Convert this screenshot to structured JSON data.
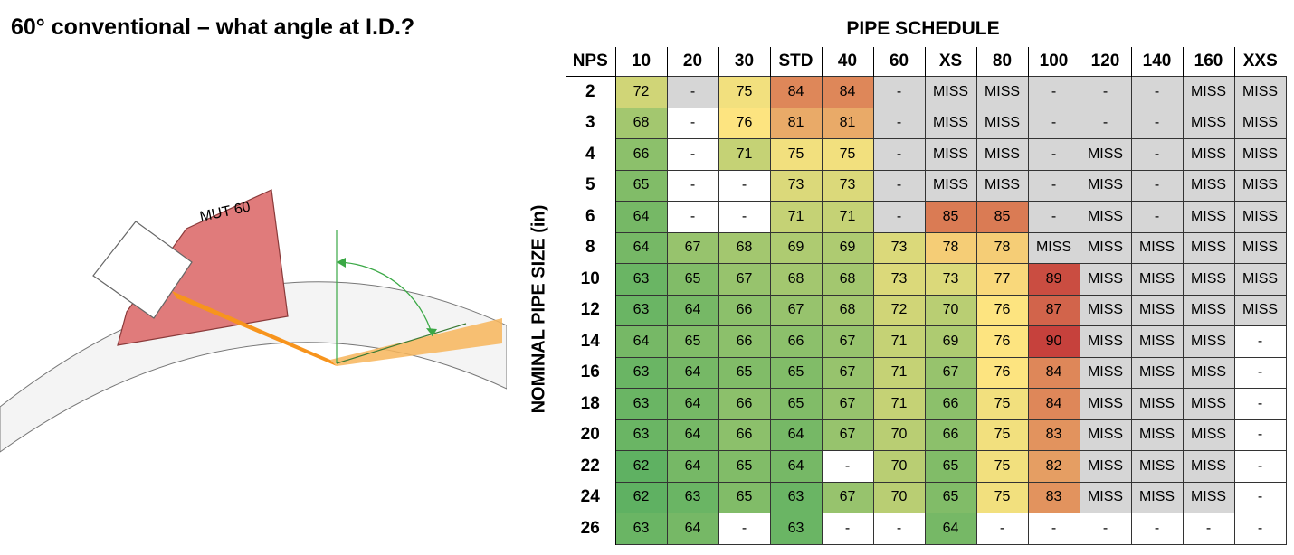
{
  "title": "60° conventional – what angle at I.D.?",
  "diagram": {
    "probe_label": "MUT 60"
  },
  "chart_data": {
    "type": "table",
    "title": "PIPE SCHEDULE",
    "ylabel": "NOMINAL PIPE SIZE (in)",
    "row_header": "NPS",
    "columns": [
      "10",
      "20",
      "30",
      "STD",
      "40",
      "60",
      "XS",
      "80",
      "100",
      "120",
      "140",
      "160",
      "XXS"
    ],
    "rows": [
      {
        "nps": "2",
        "values": [
          "72",
          "-",
          "75",
          "84",
          "84",
          "-",
          "MISS",
          "MISS",
          "-",
          "-",
          "-",
          "MISS",
          "MISS"
        ]
      },
      {
        "nps": "3",
        "values": [
          "68",
          "-",
          "76",
          "81",
          "81",
          "-",
          "MISS",
          "MISS",
          "-",
          "-",
          "-",
          "MISS",
          "MISS"
        ]
      },
      {
        "nps": "4",
        "values": [
          "66",
          "-",
          "71",
          "75",
          "75",
          "-",
          "MISS",
          "MISS",
          "-",
          "MISS",
          "-",
          "MISS",
          "MISS"
        ]
      },
      {
        "nps": "5",
        "values": [
          "65",
          "-",
          "-",
          "73",
          "73",
          "-",
          "MISS",
          "MISS",
          "-",
          "MISS",
          "-",
          "MISS",
          "MISS"
        ]
      },
      {
        "nps": "6",
        "values": [
          "64",
          "-",
          "-",
          "71",
          "71",
          "-",
          "85",
          "85",
          "-",
          "MISS",
          "-",
          "MISS",
          "MISS"
        ]
      },
      {
        "nps": "8",
        "values": [
          "64",
          "67",
          "68",
          "69",
          "69",
          "73",
          "78",
          "78",
          "MISS",
          "MISS",
          "MISS",
          "MISS",
          "MISS"
        ]
      },
      {
        "nps": "10",
        "values": [
          "63",
          "65",
          "67",
          "68",
          "68",
          "73",
          "73",
          "77",
          "89",
          "MISS",
          "MISS",
          "MISS",
          "MISS"
        ]
      },
      {
        "nps": "12",
        "values": [
          "63",
          "64",
          "66",
          "67",
          "68",
          "72",
          "70",
          "76",
          "87",
          "MISS",
          "MISS",
          "MISS",
          "MISS"
        ]
      },
      {
        "nps": "14",
        "values": [
          "64",
          "65",
          "66",
          "66",
          "67",
          "71",
          "69",
          "76",
          "90",
          "MISS",
          "MISS",
          "MISS",
          "-"
        ]
      },
      {
        "nps": "16",
        "values": [
          "63",
          "64",
          "65",
          "65",
          "67",
          "71",
          "67",
          "76",
          "84",
          "MISS",
          "MISS",
          "MISS",
          "-"
        ]
      },
      {
        "nps": "18",
        "values": [
          "63",
          "64",
          "66",
          "65",
          "67",
          "71",
          "66",
          "75",
          "84",
          "MISS",
          "MISS",
          "MISS",
          "-"
        ]
      },
      {
        "nps": "20",
        "values": [
          "63",
          "64",
          "66",
          "64",
          "67",
          "70",
          "66",
          "75",
          "83",
          "MISS",
          "MISS",
          "MISS",
          "-"
        ]
      },
      {
        "nps": "22",
        "values": [
          "62",
          "64",
          "65",
          "64",
          "-",
          "70",
          "65",
          "75",
          "82",
          "MISS",
          "MISS",
          "MISS",
          "-"
        ]
      },
      {
        "nps": "24",
        "values": [
          "62",
          "63",
          "65",
          "63",
          "67",
          "70",
          "65",
          "75",
          "83",
          "MISS",
          "MISS",
          "MISS",
          "-"
        ]
      },
      {
        "nps": "26",
        "values": [
          "63",
          "64",
          "-",
          "63",
          "-",
          "-",
          "64",
          "-",
          "-",
          "-",
          "-",
          "-",
          "-"
        ]
      }
    ],
    "gray_cells": {
      "2": [
        "20",
        "60",
        "XS",
        "80",
        "100",
        "120",
        "140",
        "160",
        "XXS"
      ],
      "3": [
        "60",
        "XS",
        "80",
        "100",
        "120",
        "140",
        "160",
        "XXS"
      ],
      "4": [
        "60",
        "XS",
        "80",
        "100",
        "120",
        "140",
        "160",
        "XXS"
      ],
      "5": [
        "60",
        "XS",
        "80",
        "100",
        "120",
        "140",
        "160",
        "XXS"
      ],
      "6": [
        "60",
        "100",
        "120",
        "140",
        "160",
        "XXS"
      ],
      "8": [
        "100",
        "120",
        "140",
        "160",
        "XXS"
      ],
      "10": [
        "120",
        "140",
        "160",
        "XXS"
      ],
      "12": [
        "120",
        "140",
        "160",
        "XXS"
      ],
      "14": [
        "120",
        "140",
        "160"
      ],
      "16": [
        "120",
        "140",
        "160"
      ],
      "18": [
        "120",
        "140",
        "160"
      ],
      "20": [
        "120",
        "140",
        "160"
      ],
      "22": [
        "120",
        "140",
        "160"
      ],
      "24": [
        "120",
        "140",
        "160"
      ]
    },
    "color_scale": {
      "min": 62,
      "max": 90,
      "low_color": "#5fb162",
      "mid_color": "#fde480",
      "high_color": "#c6413c"
    },
    "gray_color": "#d6d6d6"
  }
}
